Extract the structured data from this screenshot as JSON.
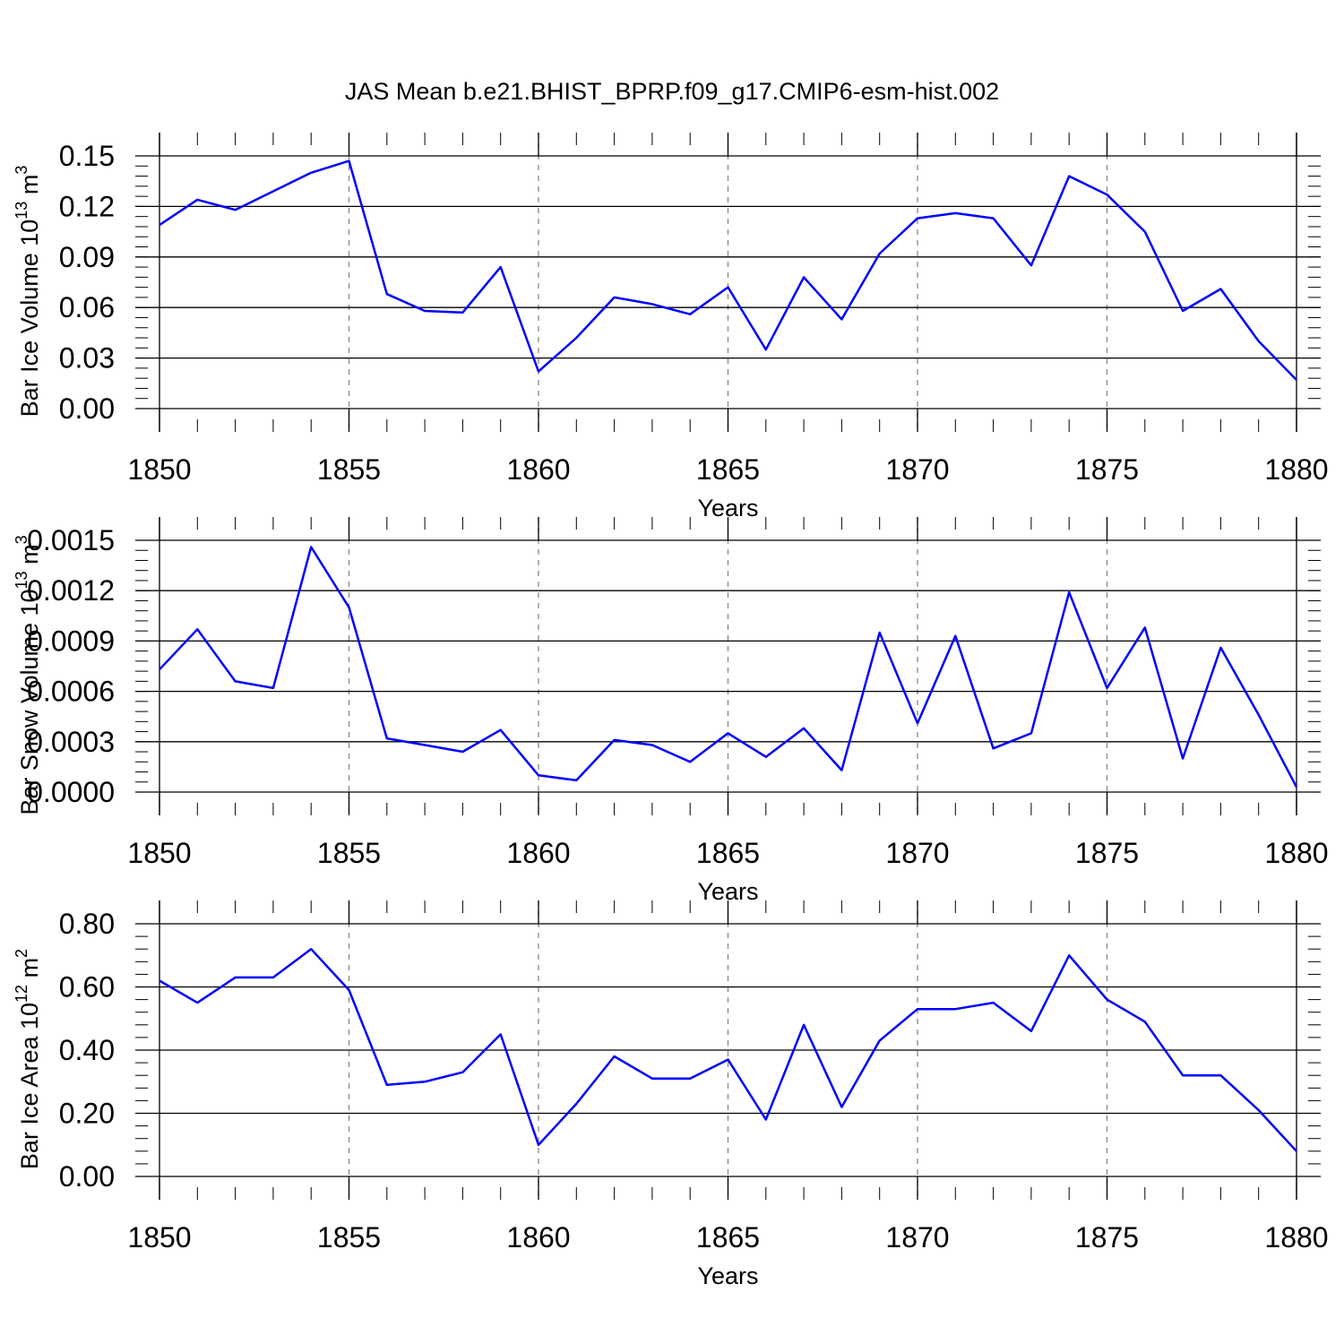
{
  "title": "JAS Mean b.e21.BHIST_BPRP.f09_g17.CMIP6-esm-hist.002",
  "chart_data": [
    {
      "type": "line",
      "ylabel_main": "Bar Ice Volume 10",
      "ylabel_exp": "13",
      "ylabel_unit": " m",
      "ylabel_unit_exp": "3",
      "xlabel": "Years",
      "xlim": [
        1850,
        1880
      ],
      "ylim": [
        0,
        0.15
      ],
      "xticks": [
        "1850",
        "1855",
        "1860",
        "1865",
        "1870",
        "1875",
        "1880"
      ],
      "yticks": [
        "0.00",
        "0.03",
        "0.06",
        "0.09",
        "0.12",
        "0.15"
      ],
      "ytick_values": [
        0,
        0.03,
        0.06,
        0.09,
        0.12,
        0.15
      ],
      "grid": "dashed vertical at major x ticks",
      "color": "#0000ff",
      "x": [
        1850,
        1851,
        1852,
        1853,
        1854,
        1855,
        1856,
        1857,
        1858,
        1859,
        1860,
        1861,
        1862,
        1863,
        1864,
        1865,
        1866,
        1867,
        1868,
        1869,
        1870,
        1871,
        1872,
        1873,
        1874,
        1875,
        1876,
        1877,
        1878,
        1879,
        1880
      ],
      "values": [
        0.109,
        0.124,
        0.118,
        0.129,
        0.14,
        0.147,
        0.068,
        0.058,
        0.057,
        0.084,
        0.022,
        0.042,
        0.066,
        0.062,
        0.056,
        0.072,
        0.035,
        0.078,
        0.053,
        0.092,
        0.113,
        0.116,
        0.113,
        0.085,
        0.138,
        0.127,
        0.105,
        0.058,
        0.071,
        0.04,
        0.017
      ]
    },
    {
      "type": "line",
      "ylabel_main": "Bar Snow Volume 10",
      "ylabel_exp": "13",
      "ylabel_unit": " m",
      "ylabel_unit_exp": "3",
      "xlabel": "Years",
      "xlim": [
        1850,
        1880
      ],
      "ylim": [
        0,
        0.0015
      ],
      "xticks": [
        "1850",
        "1855",
        "1860",
        "1865",
        "1870",
        "1875",
        "1880"
      ],
      "yticks": [
        "0.0000",
        "0.0003",
        "0.0006",
        "0.0009",
        "0.0012",
        "0.0015"
      ],
      "ytick_values": [
        0,
        0.0003,
        0.0006,
        0.0009,
        0.0012,
        0.0015
      ],
      "grid": "dashed vertical at major x ticks",
      "color": "#0000ff",
      "x": [
        1850,
        1851,
        1852,
        1853,
        1854,
        1855,
        1856,
        1857,
        1858,
        1859,
        1860,
        1861,
        1862,
        1863,
        1864,
        1865,
        1866,
        1867,
        1868,
        1869,
        1870,
        1871,
        1872,
        1873,
        1874,
        1875,
        1876,
        1877,
        1878,
        1879,
        1880
      ],
      "values": [
        0.00073,
        0.00097,
        0.00066,
        0.00062,
        0.00146,
        0.0011,
        0.00032,
        0.00028,
        0.00024,
        0.00037,
        0.0001,
        7e-05,
        0.00031,
        0.00028,
        0.00018,
        0.00035,
        0.00021,
        0.00038,
        0.00013,
        0.00095,
        0.00041,
        0.00093,
        0.00026,
        0.00035,
        0.00119,
        0.00062,
        0.00098,
        0.0002,
        0.00086,
        0.00046,
        3e-05
      ]
    },
    {
      "type": "line",
      "ylabel_main": "Bar Ice Area 10",
      "ylabel_exp": "12",
      "ylabel_unit": " m",
      "ylabel_unit_exp": "2",
      "xlabel": "Years",
      "xlim": [
        1850,
        1880
      ],
      "ylim": [
        0,
        0.8
      ],
      "xticks": [
        "1850",
        "1855",
        "1860",
        "1865",
        "1870",
        "1875",
        "1880"
      ],
      "yticks": [
        "0.00",
        "0.20",
        "0.40",
        "0.60",
        "0.80"
      ],
      "ytick_values": [
        0,
        0.2,
        0.4,
        0.6,
        0.8
      ],
      "grid": "dashed vertical at major x ticks",
      "color": "#0000ff",
      "x": [
        1850,
        1851,
        1852,
        1853,
        1854,
        1855,
        1856,
        1857,
        1858,
        1859,
        1860,
        1861,
        1862,
        1863,
        1864,
        1865,
        1866,
        1867,
        1868,
        1869,
        1870,
        1871,
        1872,
        1873,
        1874,
        1875,
        1876,
        1877,
        1878,
        1879,
        1880
      ],
      "values": [
        0.62,
        0.55,
        0.63,
        0.63,
        0.72,
        0.59,
        0.29,
        0.3,
        0.33,
        0.45,
        0.1,
        0.23,
        0.38,
        0.31,
        0.31,
        0.37,
        0.18,
        0.48,
        0.22,
        0.43,
        0.53,
        0.53,
        0.55,
        0.46,
        0.7,
        0.56,
        0.49,
        0.32,
        0.32,
        0.21,
        0.08
      ]
    }
  ]
}
